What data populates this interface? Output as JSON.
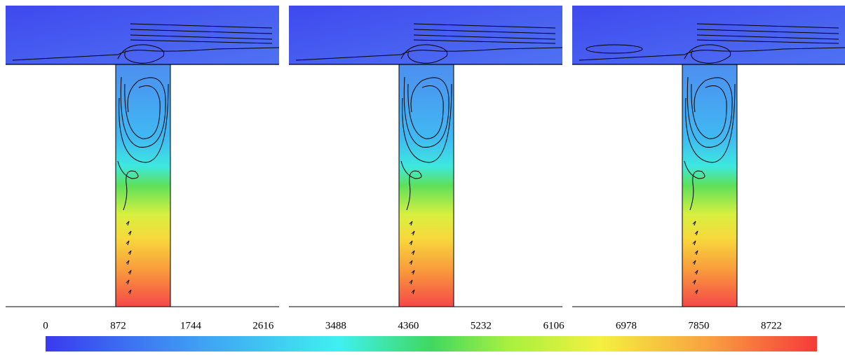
{
  "colorbar": {
    "ticks": [
      0,
      872,
      1744,
      2616,
      3488,
      4360,
      5232,
      6106,
      6978,
      7850,
      8722
    ]
  }
}
